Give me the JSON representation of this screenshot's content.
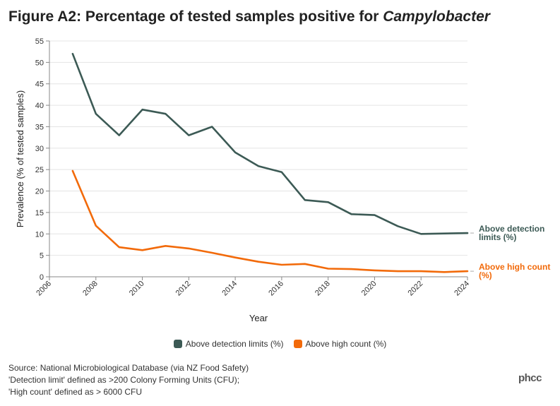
{
  "title_prefix": "Figure A2: Percentage of tested samples positive for ",
  "title_italic": "Campylobacter",
  "chart_data": {
    "type": "line",
    "xlabel": "Year",
    "ylabel": "Prevalence (% of tested samples)",
    "xlim": [
      2006,
      2024
    ],
    "ylim": [
      0,
      55
    ],
    "x_ticks": [
      2006,
      2008,
      2010,
      2012,
      2014,
      2016,
      2018,
      2020,
      2022,
      2024
    ],
    "y_ticks": [
      0,
      5,
      10,
      15,
      20,
      25,
      30,
      35,
      40,
      45,
      50,
      55
    ],
    "grid": true,
    "x": [
      2007,
      2008,
      2009,
      2010,
      2011,
      2012,
      2013,
      2014,
      2015,
      2016,
      2017,
      2018,
      2019,
      2020,
      2021,
      2022,
      2023,
      2024
    ],
    "series": [
      {
        "name": "Above detection limits (%)",
        "end_label": [
          "Above detection",
          "limits (%)"
        ],
        "color": "#3c5a55",
        "values": [
          52,
          38,
          33,
          39,
          38,
          33,
          35,
          29,
          25.8,
          24.4,
          17.9,
          17.4,
          14.6,
          14.4,
          11.8,
          10,
          10.1,
          10.2
        ]
      },
      {
        "name": "Above high count (%)",
        "end_label": [
          "Above high count",
          "(%)"
        ],
        "color": "#f26a0a",
        "values": [
          24.7,
          11.9,
          6.9,
          6.2,
          7.2,
          6.6,
          5.6,
          4.5,
          3.5,
          2.8,
          3,
          1.9,
          1.8,
          1.5,
          1.3,
          1.3,
          1.1,
          1.3
        ]
      }
    ]
  },
  "legend": [
    {
      "label": "Above detection limits (%)",
      "color": "#3c5a55"
    },
    {
      "label": "Above high count (%)",
      "color": "#f26a0a"
    }
  ],
  "source": {
    "line1": "Source: National Microbiological Database (via NZ Food Safety)",
    "line2": "'Detection limit' defined as >200 Colony Forming Units (CFU);",
    "line3": "'High count' defined as > 6000 CFU"
  },
  "logo": "phcc"
}
